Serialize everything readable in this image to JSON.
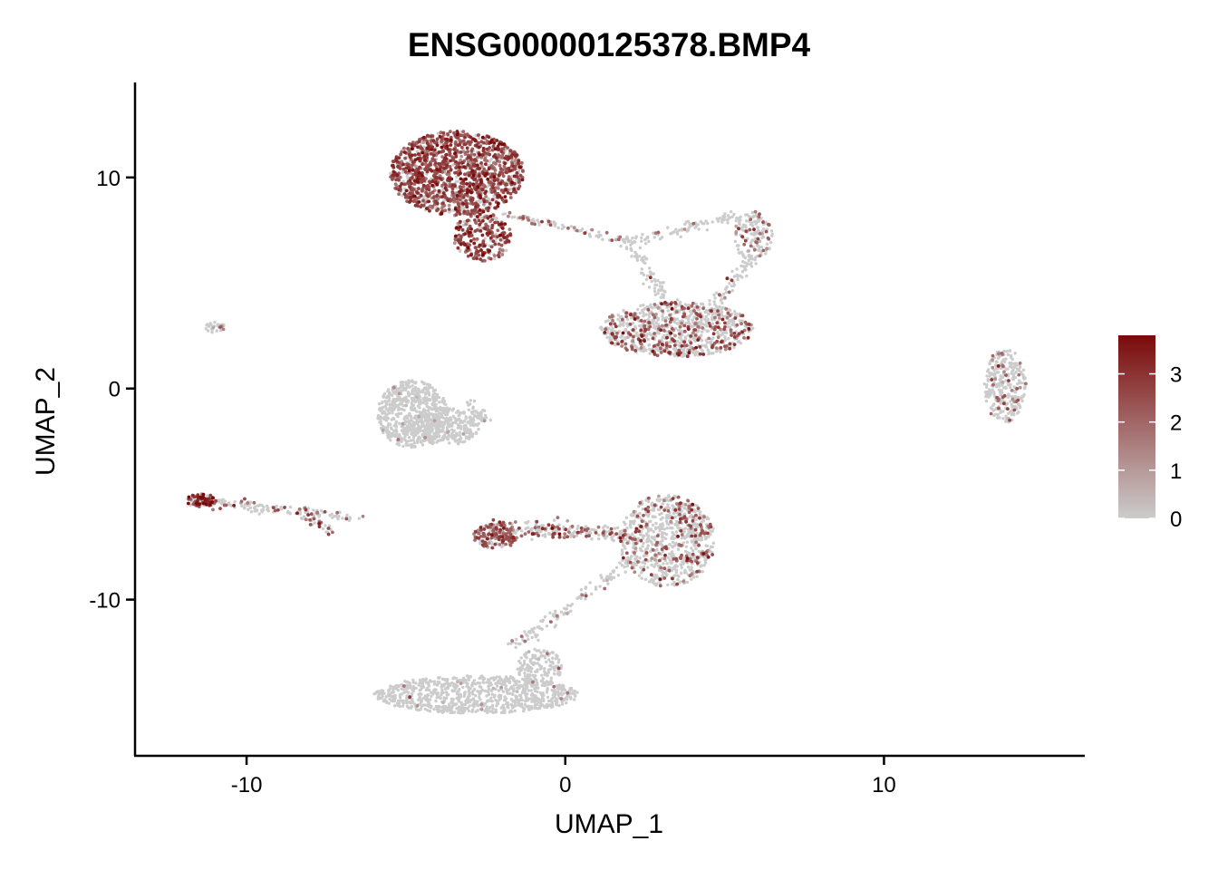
{
  "chart_data": {
    "type": "scatter",
    "title": "ENSG00000125378.BMP4",
    "xlabel": "UMAP_1",
    "ylabel": "UMAP_2",
    "xlim": [
      -13.5,
      16.3
    ],
    "ylim": [
      -17.4,
      14.5
    ],
    "x_ticks": [
      -10,
      0,
      10
    ],
    "y_ticks": [
      -10,
      0,
      10
    ],
    "x_tick_labels": [
      "-10",
      "0",
      "10"
    ],
    "y_tick_labels": [
      "-10",
      "0",
      "10"
    ],
    "grid": false,
    "legend": {
      "placement": "right",
      "type": "colorbar",
      "min": 0,
      "max": 3.8,
      "ticks": [
        0,
        1,
        2,
        3
      ],
      "tick_labels": [
        "0",
        "1",
        "2",
        "3"
      ]
    },
    "color_low": "#CCCCCC",
    "color_high": "#7A0A0A",
    "clusters": [
      {
        "cx": -3.4,
        "cy": 10.2,
        "rx": 2.1,
        "ry": 2.0,
        "n": 1400,
        "expr_frac": 0.78,
        "expr_mean": 2.4
      },
      {
        "cx": -2.6,
        "cy": 7.2,
        "rx": 0.9,
        "ry": 1.2,
        "n": 250,
        "expr_frac": 0.75,
        "expr_mean": 2.6
      },
      {
        "cx": 3.5,
        "cy": 2.8,
        "rx": 2.4,
        "ry": 1.3,
        "n": 900,
        "expr_frac": 0.28,
        "expr_mean": 2.2
      },
      {
        "cx": 5.9,
        "cy": 7.2,
        "rx": 0.6,
        "ry": 1.2,
        "n": 150,
        "expr_frac": 0.2,
        "expr_mean": 2.0
      },
      {
        "cx": -4.8,
        "cy": -1.2,
        "rx": 1.1,
        "ry": 1.6,
        "n": 600,
        "expr_frac": 0.01,
        "expr_mean": 1.0
      },
      {
        "cx": -3.8,
        "cy": -1.8,
        "rx": 1.1,
        "ry": 0.9,
        "n": 300,
        "expr_frac": 0.01,
        "expr_mean": 1.0
      },
      {
        "cx": 3.2,
        "cy": -7.2,
        "rx": 1.5,
        "ry": 2.2,
        "n": 800,
        "expr_frac": 0.2,
        "expr_mean": 2.2
      },
      {
        "cx": -2.2,
        "cy": -7.0,
        "rx": 0.7,
        "ry": 0.6,
        "n": 150,
        "expr_frac": 0.6,
        "expr_mean": 2.2
      },
      {
        "cx": -2.8,
        "cy": -14.5,
        "rx": 3.2,
        "ry": 0.9,
        "n": 900,
        "expr_frac": 0.01,
        "expr_mean": 1.0
      },
      {
        "cx": -0.8,
        "cy": -13.2,
        "rx": 0.7,
        "ry": 0.9,
        "n": 150,
        "expr_frac": 0.02,
        "expr_mean": 1.0
      },
      {
        "cx": 13.8,
        "cy": 0.1,
        "rx": 0.65,
        "ry": 1.8,
        "n": 300,
        "expr_frac": 0.1,
        "expr_mean": 2.0
      },
      {
        "cx": -11.4,
        "cy": -5.3,
        "rx": 0.5,
        "ry": 0.3,
        "n": 80,
        "expr_frac": 0.85,
        "expr_mean": 3.0
      },
      {
        "cx": -11.0,
        "cy": 2.9,
        "rx": 0.35,
        "ry": 0.25,
        "n": 30,
        "expr_frac": 0.3,
        "expr_mean": 2.0
      }
    ],
    "bridges": [
      {
        "x0": -2.0,
        "y0": 8.3,
        "x1": 2.0,
        "y1": 7.0,
        "width": 0.25,
        "n": 80,
        "expr_frac": 0.25,
        "expr_mean": 2.0
      },
      {
        "x0": 2.0,
        "y0": 7.0,
        "x1": 5.5,
        "y1": 8.2,
        "width": 0.3,
        "n": 90,
        "expr_frac": 0.05,
        "expr_mean": 1.5
      },
      {
        "x0": 2.0,
        "y0": 7.0,
        "x1": 3.2,
        "y1": 4.2,
        "width": 0.35,
        "n": 70,
        "expr_frac": 0.05,
        "expr_mean": 1.5
      },
      {
        "x0": 6.0,
        "y0": 6.5,
        "x1": 4.6,
        "y1": 3.8,
        "width": 0.35,
        "n": 70,
        "expr_frac": 0.1,
        "expr_mean": 1.8
      },
      {
        "x0": -3.0,
        "y0": -0.7,
        "x1": -2.5,
        "y1": -1.5,
        "width": 0.3,
        "n": 40,
        "expr_frac": 0.02,
        "expr_mean": 1.0
      },
      {
        "x0": -2.2,
        "y0": -6.6,
        "x1": 1.8,
        "y1": -6.9,
        "width": 0.5,
        "n": 200,
        "expr_frac": 0.35,
        "expr_mean": 2.3
      },
      {
        "x0": 2.2,
        "y0": -8.0,
        "x1": -1.6,
        "y1": -12.2,
        "width": 0.3,
        "n": 120,
        "expr_frac": 0.05,
        "expr_mean": 1.5
      },
      {
        "x0": -11.8,
        "y0": -5.3,
        "x1": -6.5,
        "y1": -6.1,
        "width": 0.3,
        "n": 140,
        "expr_frac": 0.2,
        "expr_mean": 2.0
      },
      {
        "x0": -8.3,
        "y0": -6.0,
        "x1": -7.4,
        "y1": -6.7,
        "width": 0.25,
        "n": 40,
        "expr_frac": 0.3,
        "expr_mean": 2.0
      }
    ]
  }
}
